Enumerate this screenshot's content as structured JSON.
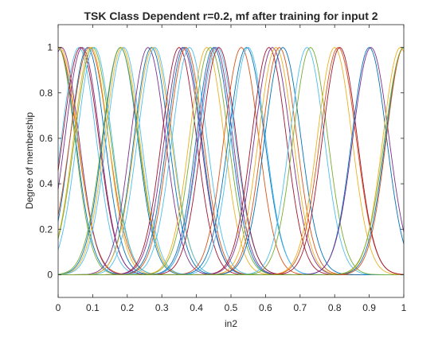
{
  "chart_data": {
    "type": "line",
    "title": "TSK Class Dependent r=0.2, mf after training for input 2",
    "xlabel": "in2",
    "ylabel": "Degree of membership",
    "xlim": [
      0,
      1
    ],
    "ylim": [
      -0.1,
      1.1
    ],
    "xticks": [
      "0",
      "0.1",
      "0.2",
      "0.3",
      "0.4",
      "0.5",
      "0.6",
      "0.7",
      "0.8",
      "0.9",
      "1"
    ],
    "yticks": [
      "0",
      "0.2",
      "0.4",
      "0.6",
      "0.8",
      "1"
    ],
    "grid": false,
    "legend": "none",
    "series_kind": "gaussian membership functions",
    "series": [
      {
        "center": 0.0,
        "sigma": 0.05,
        "color": "#0072BD"
      },
      {
        "center": 0.0,
        "sigma": 0.055,
        "color": "#D95319"
      },
      {
        "center": 0.005,
        "sigma": 0.052,
        "color": "#EDB120"
      },
      {
        "center": 0.01,
        "sigma": 0.05,
        "color": "#7E2F8E"
      },
      {
        "center": 0.0,
        "sigma": 0.048,
        "color": "#77AC30"
      },
      {
        "center": 0.06,
        "sigma": 0.05,
        "color": "#4DBEEE"
      },
      {
        "center": 0.065,
        "sigma": 0.052,
        "color": "#A2142F"
      },
      {
        "center": 0.07,
        "sigma": 0.05,
        "color": "#7E2F8E"
      },
      {
        "center": 0.085,
        "sigma": 0.05,
        "color": "#0072BD"
      },
      {
        "center": 0.09,
        "sigma": 0.055,
        "color": "#D95319"
      },
      {
        "center": 0.095,
        "sigma": 0.05,
        "color": "#EDB120"
      },
      {
        "center": 0.1,
        "sigma": 0.052,
        "color": "#77AC30"
      },
      {
        "center": 0.105,
        "sigma": 0.05,
        "color": "#4DBEEE"
      },
      {
        "center": 0.18,
        "sigma": 0.05,
        "color": "#0072BD"
      },
      {
        "center": 0.18,
        "sigma": 0.052,
        "color": "#77AC30"
      },
      {
        "center": 0.185,
        "sigma": 0.05,
        "color": "#EDB120"
      },
      {
        "center": 0.19,
        "sigma": 0.05,
        "color": "#4DBEEE"
      },
      {
        "center": 0.26,
        "sigma": 0.05,
        "color": "#7E2F8E"
      },
      {
        "center": 0.27,
        "sigma": 0.05,
        "color": "#0072BD"
      },
      {
        "center": 0.275,
        "sigma": 0.052,
        "color": "#EDB120"
      },
      {
        "center": 0.28,
        "sigma": 0.05,
        "color": "#4DBEEE"
      },
      {
        "center": 0.35,
        "sigma": 0.05,
        "color": "#A2142F"
      },
      {
        "center": 0.36,
        "sigma": 0.052,
        "color": "#7E2F8E"
      },
      {
        "center": 0.365,
        "sigma": 0.05,
        "color": "#0072BD"
      },
      {
        "center": 0.37,
        "sigma": 0.05,
        "color": "#D95319"
      },
      {
        "center": 0.38,
        "sigma": 0.05,
        "color": "#4DBEEE"
      },
      {
        "center": 0.43,
        "sigma": 0.05,
        "color": "#EDB120"
      },
      {
        "center": 0.44,
        "sigma": 0.052,
        "color": "#77AC30"
      },
      {
        "center": 0.45,
        "sigma": 0.05,
        "color": "#0072BD"
      },
      {
        "center": 0.455,
        "sigma": 0.05,
        "color": "#7E2F8E"
      },
      {
        "center": 0.46,
        "sigma": 0.052,
        "color": "#4DBEEE"
      },
      {
        "center": 0.465,
        "sigma": 0.05,
        "color": "#A2142F"
      },
      {
        "center": 0.53,
        "sigma": 0.05,
        "color": "#D95319"
      },
      {
        "center": 0.545,
        "sigma": 0.052,
        "color": "#0072BD"
      },
      {
        "center": 0.55,
        "sigma": 0.05,
        "color": "#4DBEEE"
      },
      {
        "center": 0.61,
        "sigma": 0.05,
        "color": "#A2142F"
      },
      {
        "center": 0.62,
        "sigma": 0.052,
        "color": "#7E2F8E"
      },
      {
        "center": 0.63,
        "sigma": 0.05,
        "color": "#EDB120"
      },
      {
        "center": 0.64,
        "sigma": 0.05,
        "color": "#D95319"
      },
      {
        "center": 0.65,
        "sigma": 0.052,
        "color": "#0072BD"
      },
      {
        "center": 0.72,
        "sigma": 0.05,
        "color": "#4DBEEE"
      },
      {
        "center": 0.73,
        "sigma": 0.05,
        "color": "#77AC30"
      },
      {
        "center": 0.8,
        "sigma": 0.05,
        "color": "#EDB120"
      },
      {
        "center": 0.81,
        "sigma": 0.052,
        "color": "#D95319"
      },
      {
        "center": 0.815,
        "sigma": 0.05,
        "color": "#A2142F"
      },
      {
        "center": 0.9,
        "sigma": 0.05,
        "color": "#0072BD"
      },
      {
        "center": 0.905,
        "sigma": 0.052,
        "color": "#7E2F8E"
      },
      {
        "center": 0.99,
        "sigma": 0.05,
        "color": "#EDB120"
      },
      {
        "center": 1.0,
        "sigma": 0.052,
        "color": "#0072BD"
      },
      {
        "center": 1.0,
        "sigma": 0.05,
        "color": "#D95319"
      },
      {
        "center": 1.0,
        "sigma": 0.055,
        "color": "#77AC30"
      }
    ]
  }
}
